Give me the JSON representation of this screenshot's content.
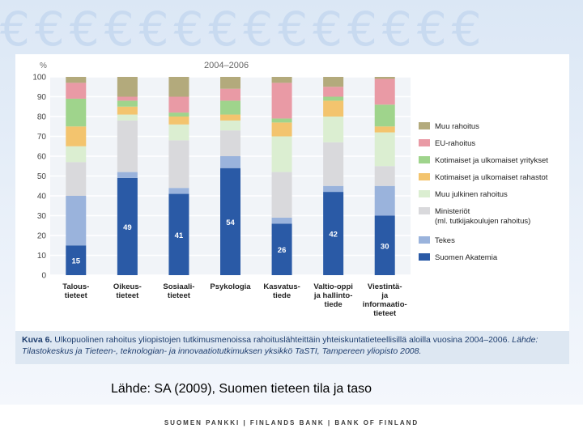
{
  "background": {
    "euro_glyphs": "€€€€€€€€€€€€€€"
  },
  "chart_data": {
    "type": "bar",
    "stacked": true,
    "title": "2004–2006",
    "ylabel": "%",
    "ylim": [
      0,
      100
    ],
    "yticks": [
      "0",
      "10",
      "20",
      "30",
      "40",
      "50",
      "60",
      "70",
      "80",
      "90",
      "100"
    ],
    "categories": [
      [
        "Talous-",
        "tieteet"
      ],
      [
        "Oikeus-",
        "tieteet"
      ],
      [
        "Sosiaali-",
        "tieteet"
      ],
      [
        "Psykologia"
      ],
      [
        "Kasvatus-",
        "tiede"
      ],
      [
        "Valtio-oppi",
        "ja hallinto-",
        "tiede"
      ],
      [
        "Viestintä-",
        "ja",
        "informaatio-",
        "tieteet"
      ]
    ],
    "series": [
      {
        "name": "Suomen Akatemia",
        "color": "#2a5aa6",
        "values": [
          15,
          49,
          41,
          54,
          26,
          42,
          30
        ],
        "labels": [
          "15",
          "49",
          "41",
          "54",
          "26",
          "42",
          "30"
        ]
      },
      {
        "name": "Tekes",
        "color": "#9ab3dc",
        "values": [
          25,
          3,
          3,
          6,
          3,
          3,
          15
        ]
      },
      {
        "name": "Ministeriöt (ml. tutkijakoulujen rahoitus)",
        "legend_lines": [
          "Ministeriöt",
          "(ml. tutkijakoulujen rahoitus)"
        ],
        "color": "#d9d9dc",
        "values": [
          17,
          26,
          24,
          13,
          23,
          22,
          10
        ]
      },
      {
        "name": "Muu julkinen rahoitus",
        "color": "#dbeed1",
        "values": [
          8,
          3,
          8,
          5,
          18,
          13,
          17
        ]
      },
      {
        "name": "Kotimaiset ja ulkomaiset rahastot",
        "color": "#f3c46e",
        "values": [
          10,
          4,
          4,
          3,
          7,
          8,
          3
        ]
      },
      {
        "name": "Kotimaiset ja ulkomaiset yritykset",
        "color": "#9fd48c",
        "values": [
          14,
          3,
          2,
          7,
          2,
          2,
          11
        ]
      },
      {
        "name": "EU-rahoitus",
        "color": "#e99aa5",
        "values": [
          8,
          2,
          8,
          6,
          18,
          5,
          13
        ]
      },
      {
        "name": "Muu rahoitus",
        "color": "#b3aa7c",
        "values": [
          3,
          10,
          10,
          6,
          3,
          5,
          1
        ]
      }
    ]
  },
  "caption": {
    "label": "Kuva 6.",
    "text": " Ulkopuolinen rahoitus yliopistojen tutkimusmenoissa rahoituslähteittäin yhteiskuntatieteellisillä aloilla vuosina 2004–2006. ",
    "source": "Lähde: Tilastokeskus ja Tieteen-, teknologian- ja innovaatiotutkimuksen yksikkö TaSTI, Tampereen yliopisto 2008."
  },
  "source_line": "Lähde: SA (2009), Suomen tieteen tila ja taso",
  "footer": "SUOMEN PANKKI | FINLANDS BANK | BANK OF FINLAND"
}
